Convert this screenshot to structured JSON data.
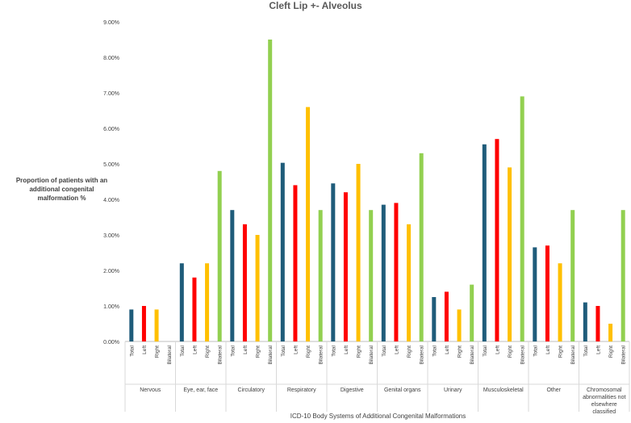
{
  "chart_data": {
    "type": "bar",
    "title": "Cleft Lip +- Alveolus",
    "ylabel": "Proportion of patients with an additional congenital malformation  %",
    "xlabel": "ICD-10 Body Systems of Additional Congenital Malformations",
    "ylim": [
      0,
      9
    ],
    "ytick_labels": [
      "0.00%",
      "1.00%",
      "2.00%",
      "3.00%",
      "4.00%",
      "5.00%",
      "6.00%",
      "7.00%",
      "8.00%",
      "9.00%"
    ],
    "grid": false,
    "subcategories": [
      "Total",
      "Left",
      "Right",
      "Bilateral"
    ],
    "colors": {
      "Total": "#1f5c7a",
      "Left": "#ff0000",
      "Right": "#ffc000",
      "Bilateral": "#92d050"
    },
    "groups": [
      {
        "label": "Nervous",
        "values": [
          0.9,
          1.0,
          0.9,
          0.0
        ]
      },
      {
        "label": "Eye, ear, face",
        "values": [
          2.2,
          1.8,
          2.2,
          4.8
        ]
      },
      {
        "label": "Circulatory",
        "values": [
          3.7,
          3.3,
          3.0,
          8.5
        ]
      },
      {
        "label": "Respiratory",
        "values": [
          5.03,
          4.4,
          6.6,
          3.7
        ]
      },
      {
        "label": "Digestive",
        "values": [
          4.45,
          4.2,
          5.0,
          3.7
        ]
      },
      {
        "label": "Genital organs",
        "values": [
          3.85,
          3.9,
          3.3,
          5.3
        ]
      },
      {
        "label": "Urinary",
        "values": [
          1.25,
          1.4,
          0.9,
          1.6
        ]
      },
      {
        "label": "Musculoskeletal",
        "values": [
          5.55,
          5.7,
          4.9,
          6.9
        ]
      },
      {
        "label": "Other",
        "values": [
          2.65,
          2.7,
          2.2,
          3.7
        ]
      },
      {
        "label": "Chromosomal abnormalities not elsewhere classified",
        "values": [
          1.1,
          1.0,
          0.5,
          3.7
        ]
      }
    ]
  }
}
